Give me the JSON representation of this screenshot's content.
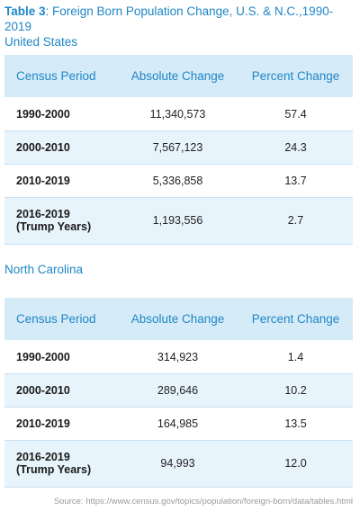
{
  "title": {
    "label": "Table 3",
    "text": ": Foreign Born Population Change, U.S. & N.C.,1990-2019",
    "subtitle": "United States"
  },
  "columns": [
    "Census Period",
    "Absolute Change",
    "Percent Change"
  ],
  "us": {
    "rows": [
      {
        "period": "1990-2000",
        "period_note": "",
        "absolute": "11,340,573",
        "percent": "57.4"
      },
      {
        "period": "2000-2010",
        "period_note": "",
        "absolute": "7,567,123",
        "percent": "24.3"
      },
      {
        "period": "2010-2019",
        "period_note": "",
        "absolute": "5,336,858",
        "percent": "13.7"
      },
      {
        "period": "2016-2019",
        "period_note": "(Trump Years)",
        "absolute": "1,193,556",
        "percent": "2.7"
      }
    ]
  },
  "nc": {
    "heading": "North Carolina",
    "rows": [
      {
        "period": "1990-2000",
        "period_note": "",
        "absolute": "314,923",
        "percent": "1.4"
      },
      {
        "period": "2000-2010",
        "period_note": "",
        "absolute": "289,646",
        "percent": "10.2"
      },
      {
        "period": "2010-2019",
        "period_note": "",
        "absolute": "164,985",
        "percent": "13.5"
      },
      {
        "period": "2016-2019",
        "period_note": "(Trump Years)",
        "absolute": "94,993",
        "percent": "12.0"
      }
    ]
  },
  "source": "Source: https://www.census.gov/topics/population/foreign-born/data/tables.html",
  "colors": {
    "accent": "#1f86c6",
    "header_bg": "#d6ebf8",
    "row_shade": "#e8f4fb"
  }
}
